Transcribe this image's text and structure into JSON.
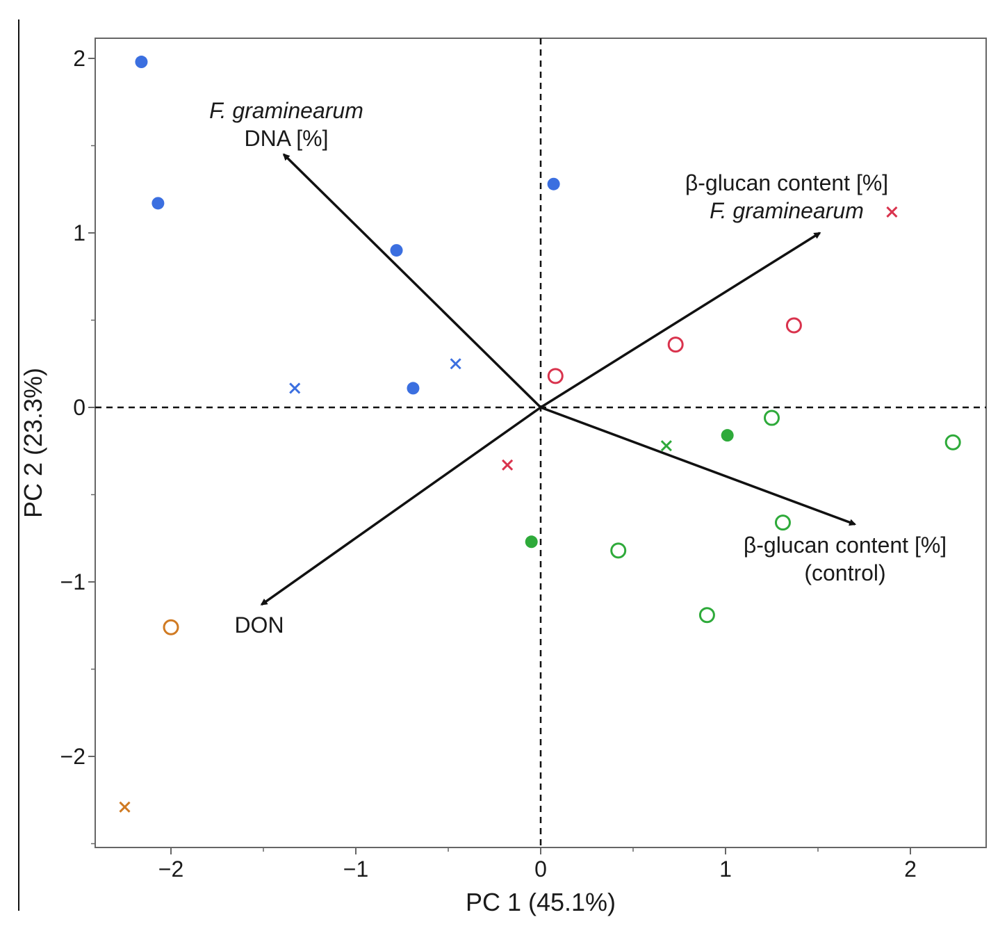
{
  "chart_data": {
    "type": "scatter",
    "subtype": "pca-biplot",
    "title": "",
    "xlabel": "PC 1 (45.1%)",
    "ylabel": "PC 2 (23.3%)",
    "xlim": [
      -2.4,
      2.4
    ],
    "ylim": [
      -2.5,
      2.1
    ],
    "xticks": [
      -2,
      -1,
      0,
      1,
      2
    ],
    "yticks": [
      -2,
      -1,
      0,
      1,
      2
    ],
    "xtick_labels": [
      "−2",
      "−1",
      "0",
      "1",
      "2"
    ],
    "ytick_labels": [
      "−2",
      "−1",
      "0",
      "1",
      "2"
    ],
    "grid": false,
    "reference_lines": {
      "x": 0,
      "y": 0,
      "style": "dashed"
    },
    "colors": {
      "blue": "#3b6fe0",
      "red": "#d9334d",
      "green": "#2eaa3a",
      "orange": "#d07a22",
      "axis": "#555555",
      "arrow": "#111111"
    },
    "series": [
      {
        "name": "blue group",
        "color_key": "blue",
        "points": [
          {
            "x": -2.16,
            "y": 1.98,
            "marker": "filled-circle"
          },
          {
            "x": -2.07,
            "y": 1.17,
            "marker": "filled-circle"
          },
          {
            "x": -0.78,
            "y": 0.9,
            "marker": "filled-circle"
          },
          {
            "x": -0.69,
            "y": 0.11,
            "marker": "filled-circle"
          },
          {
            "x": 0.07,
            "y": 1.28,
            "marker": "filled-circle"
          },
          {
            "x": -1.33,
            "y": 0.11,
            "marker": "cross"
          },
          {
            "x": -0.46,
            "y": 0.25,
            "marker": "cross"
          }
        ]
      },
      {
        "name": "red group",
        "color_key": "red",
        "points": [
          {
            "x": 0.08,
            "y": 0.18,
            "marker": "open-circle"
          },
          {
            "x": 0.73,
            "y": 0.36,
            "marker": "open-circle"
          },
          {
            "x": 1.37,
            "y": 0.47,
            "marker": "open-circle"
          },
          {
            "x": -0.18,
            "y": -0.33,
            "marker": "cross"
          },
          {
            "x": 1.9,
            "y": 1.12,
            "marker": "cross"
          }
        ]
      },
      {
        "name": "green group",
        "color_key": "green",
        "points": [
          {
            "x": 1.01,
            "y": -0.16,
            "marker": "filled-circle"
          },
          {
            "x": -0.05,
            "y": -0.77,
            "marker": "filled-circle"
          },
          {
            "x": 1.25,
            "y": -0.06,
            "marker": "open-circle"
          },
          {
            "x": 2.23,
            "y": -0.2,
            "marker": "open-circle"
          },
          {
            "x": 1.31,
            "y": -0.66,
            "marker": "open-circle"
          },
          {
            "x": 0.42,
            "y": -0.82,
            "marker": "open-circle"
          },
          {
            "x": 0.9,
            "y": -1.19,
            "marker": "open-circle"
          },
          {
            "x": 0.68,
            "y": -0.22,
            "marker": "cross"
          }
        ]
      },
      {
        "name": "orange group",
        "color_key": "orange",
        "points": [
          {
            "x": -2.0,
            "y": -1.26,
            "marker": "open-circle"
          },
          {
            "x": -2.25,
            "y": -2.29,
            "marker": "cross"
          }
        ]
      }
    ],
    "loadings": [
      {
        "name": "fgram-dna",
        "x": -1.39,
        "y": 1.45,
        "label_lines": [
          "F. graminearum",
          "DNA [%]"
        ],
        "italic_line": 0
      },
      {
        "name": "bglucan-fgram",
        "x": 1.51,
        "y": 1.0,
        "label_lines": [
          "β-glucan content [%]",
          "F. graminearum"
        ],
        "italic_line": 1
      },
      {
        "name": "bglucan-control",
        "x": 1.7,
        "y": -0.67,
        "label_lines": [
          "β-glucan content [%]",
          "(control)"
        ],
        "italic_line": -1
      },
      {
        "name": "don",
        "x": -1.51,
        "y": -1.13,
        "label_lines": [
          "DON"
        ],
        "italic_line": -1
      }
    ]
  }
}
